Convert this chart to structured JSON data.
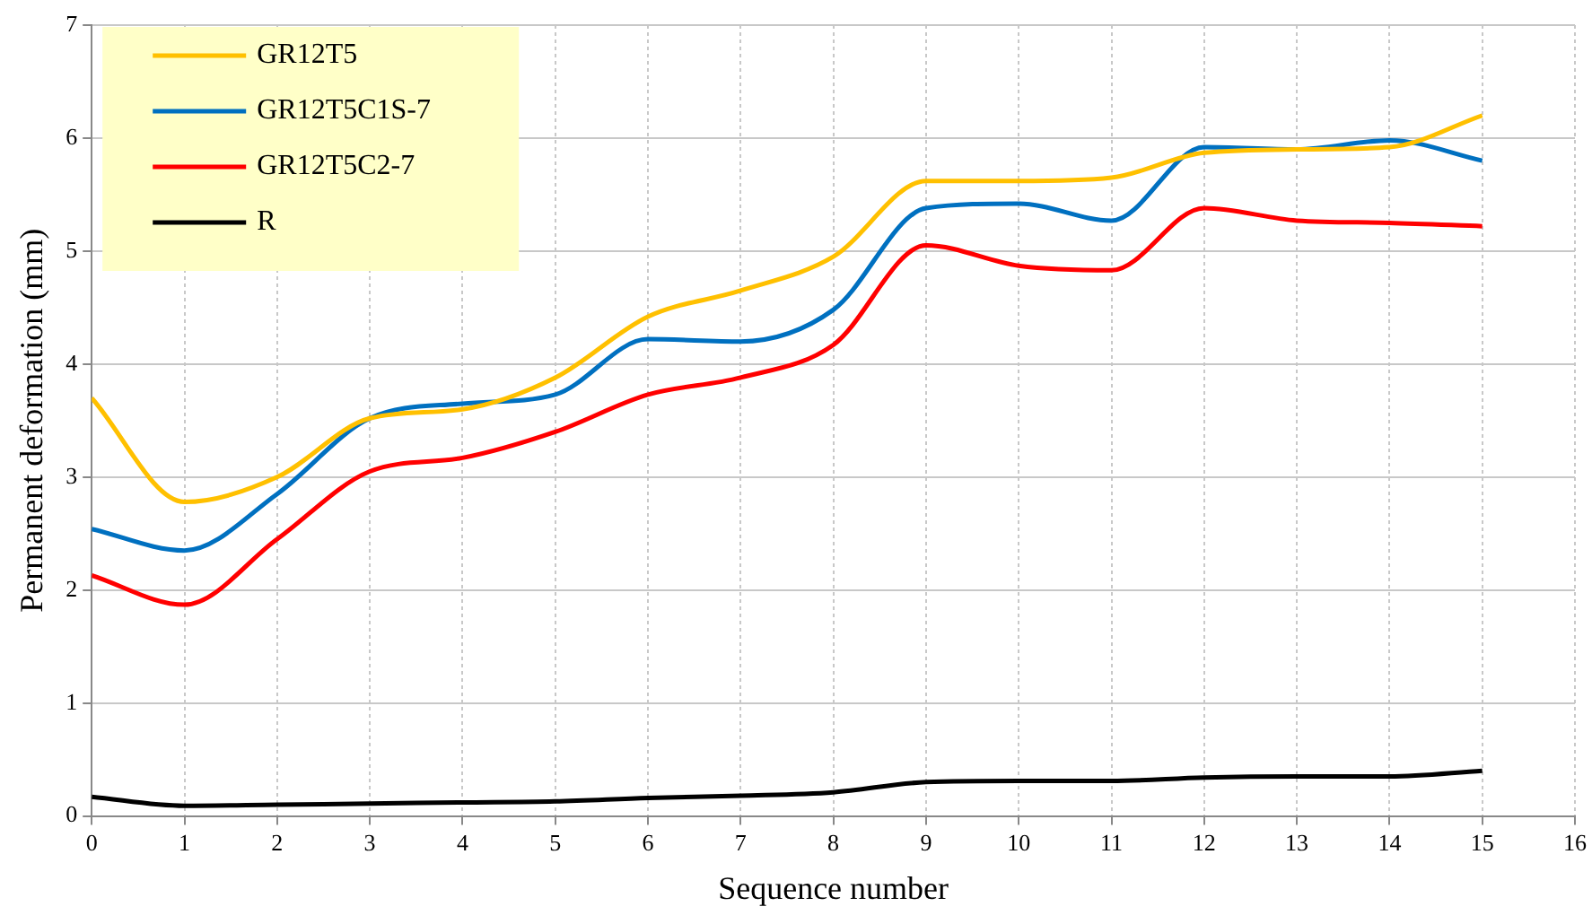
{
  "chart_data": {
    "type": "line",
    "xlabel": "Sequence number",
    "ylabel": "Permanent deformation (mm)",
    "x": [
      0,
      1,
      2,
      3,
      4,
      5,
      6,
      7,
      8,
      9,
      10,
      11,
      12,
      13,
      14,
      15
    ],
    "xlim": [
      0,
      16
    ],
    "xticks": [
      0,
      1,
      2,
      3,
      4,
      5,
      6,
      7,
      8,
      9,
      10,
      11,
      12,
      13,
      14,
      15,
      16
    ],
    "ylim": [
      0,
      7
    ],
    "yticks": [
      0,
      1,
      2,
      3,
      4,
      5,
      6,
      7
    ],
    "grid": true,
    "legend": "top left",
    "marker": "none",
    "line_style": "solid",
    "series": [
      {
        "name": "GR12T5",
        "color": "#ffc000",
        "values": [
          3.7,
          2.78,
          3.0,
          3.52,
          3.6,
          3.88,
          4.42,
          4.65,
          4.95,
          5.62,
          5.62,
          5.65,
          5.87,
          5.9,
          5.92,
          6.2
        ]
      },
      {
        "name": "GR12T5C1S-7",
        "color": "#0070c0",
        "values": [
          2.54,
          2.35,
          2.85,
          3.52,
          3.65,
          3.73,
          4.22,
          4.2,
          4.48,
          5.38,
          5.42,
          5.27,
          5.92,
          5.9,
          5.98,
          5.8
        ]
      },
      {
        "name": "GR12T5C2-7",
        "color": "#ff0000",
        "values": [
          2.13,
          1.87,
          2.45,
          3.05,
          3.17,
          3.4,
          3.73,
          3.88,
          4.17,
          5.05,
          4.87,
          4.83,
          5.38,
          5.27,
          5.25,
          5.22
        ]
      },
      {
        "name": "R",
        "color": "#000000",
        "values": [
          0.17,
          0.09,
          0.1,
          0.11,
          0.12,
          0.13,
          0.16,
          0.18,
          0.21,
          0.3,
          0.31,
          0.31,
          0.34,
          0.35,
          0.35,
          0.4
        ]
      }
    ]
  }
}
